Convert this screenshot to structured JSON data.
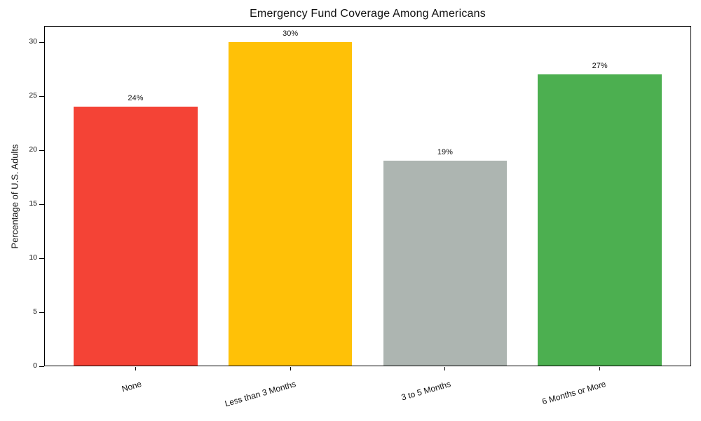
{
  "chart_data": {
    "type": "bar",
    "title": "Emergency Fund Coverage Among Americans",
    "xlabel": "",
    "ylabel": "Percentage of U.S. Adults",
    "categories": [
      "None",
      "Less than 3 Months",
      "3 to 5 Months",
      "6 Months or More"
    ],
    "values": [
      24,
      30,
      19,
      27
    ],
    "value_labels": [
      "24%",
      "30%",
      "19%",
      "27%"
    ],
    "bar_colors": [
      "#f44336",
      "#ffc107",
      "#adb5b1",
      "#4caf50"
    ],
    "yticks": [
      0,
      5,
      10,
      15,
      20,
      25,
      30
    ],
    "ylim": [
      0,
      31.5
    ],
    "grid": false,
    "legend": "none",
    "x_tick_rotation_deg": 16
  }
}
